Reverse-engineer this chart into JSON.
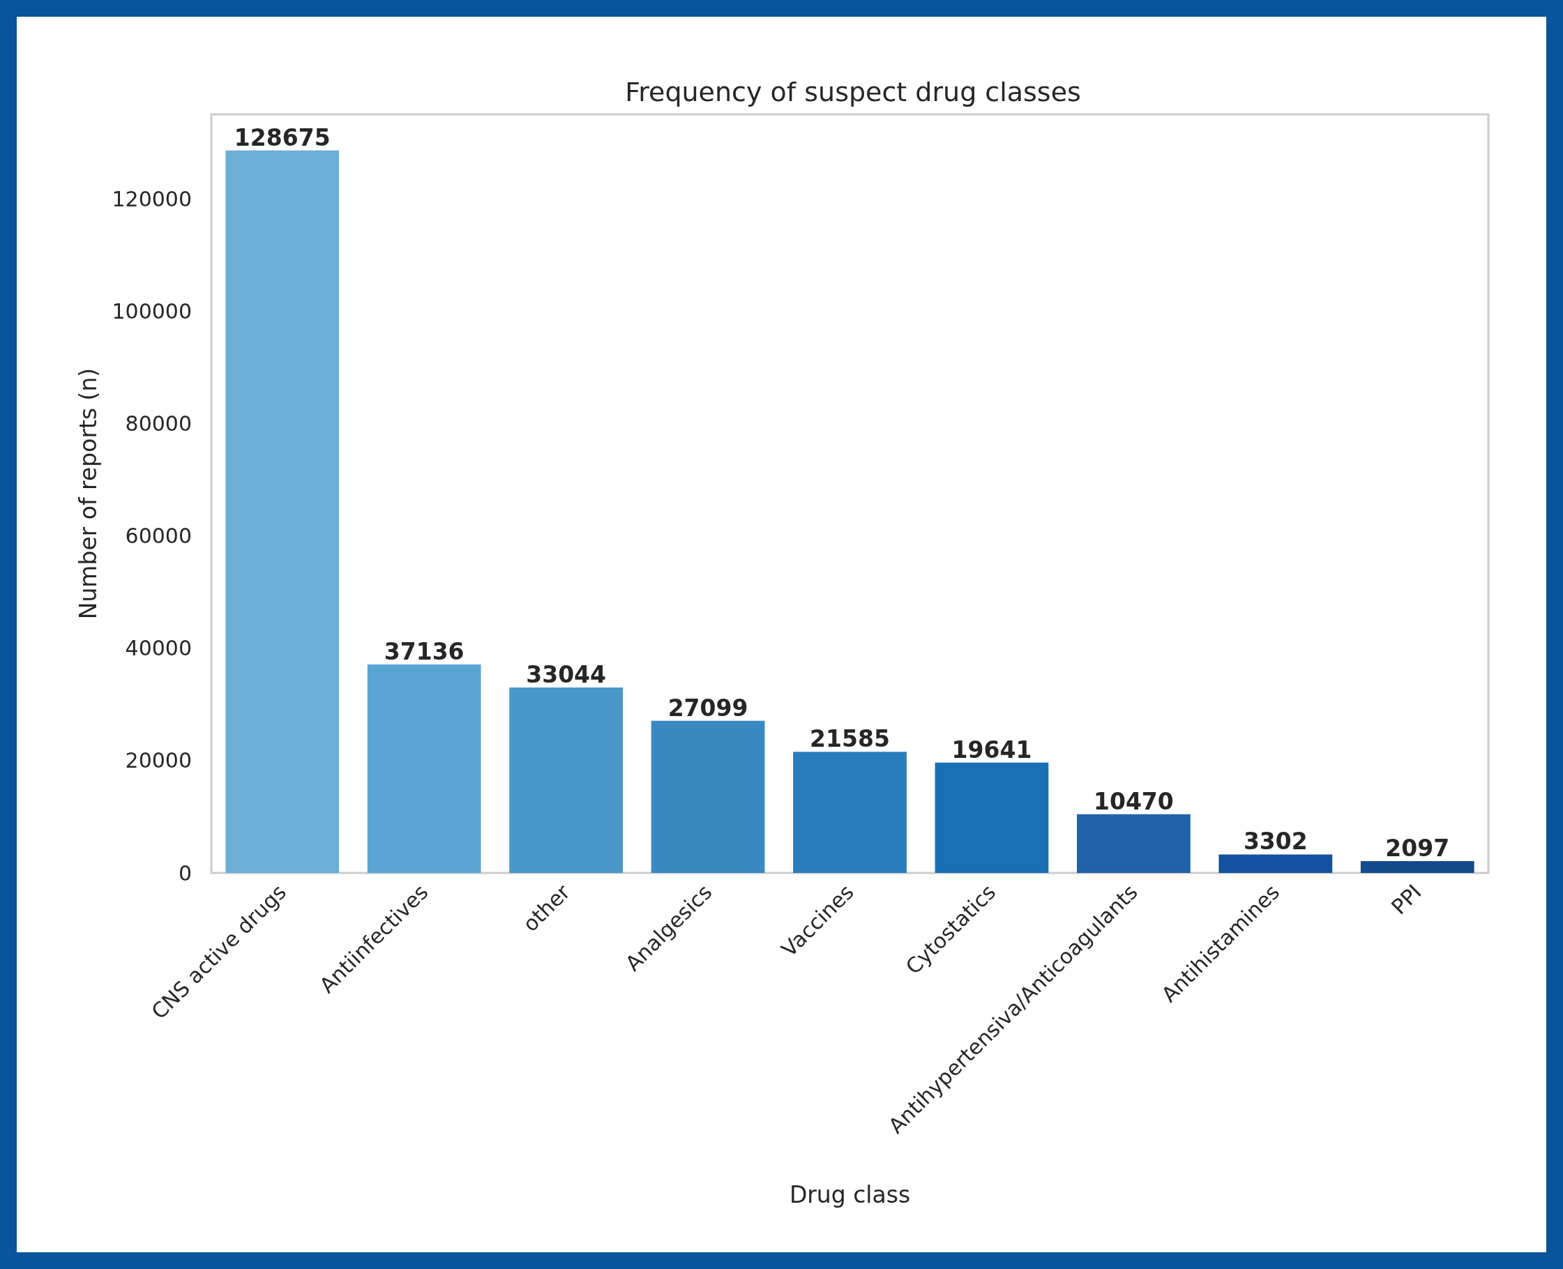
{
  "chart_data": {
    "type": "bar",
    "title": "Frequency of suspect drug classes",
    "xlabel": "Drug class",
    "ylabel": "Number of reports (n)",
    "categories": [
      "CNS active drugs",
      "Antiinfectives",
      "other",
      "Analgesics",
      "Vaccines",
      "Cytostatics",
      "Antihypertensiva/Anticoagulants",
      "Antihistamines",
      "PPI"
    ],
    "values": [
      128675,
      37136,
      33044,
      27099,
      21585,
      19641,
      10470,
      3302,
      2097
    ],
    "colors": [
      "#6baed6",
      "#5aa4d2",
      "#4a97c9",
      "#3a89c2",
      "#2a7dbb",
      "#1a70b5",
      "#2163ab",
      "#1451a0",
      "#134b8c"
    ],
    "ylim": [
      0,
      135110
    ],
    "yticks": [
      0,
      20000,
      40000,
      60000,
      80000,
      100000,
      120000
    ],
    "grid": false,
    "data_labels": true
  }
}
